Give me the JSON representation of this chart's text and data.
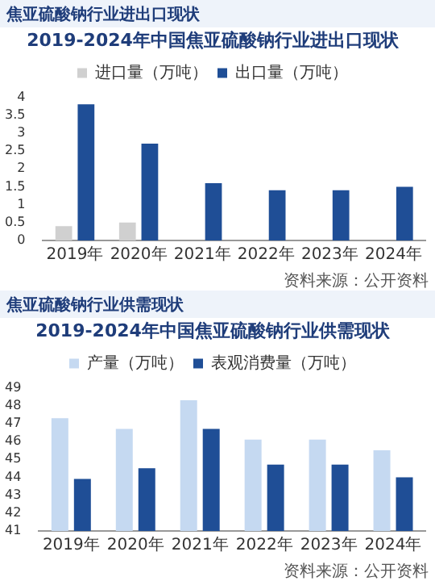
{
  "chart_data": [
    {
      "type": "bar",
      "title": "2019-2024年中国焦亚硫酸钠行业进出口现状",
      "categories": [
        "2019年",
        "2020年",
        "2021年",
        "2022年",
        "2023年",
        "2024年"
      ],
      "series": [
        {
          "name": "进口量（万吨）",
          "color": "#d0d0d0",
          "values": [
            0.4,
            0.5,
            null,
            null,
            null,
            null
          ]
        },
        {
          "name": "出口量（万吨）",
          "color": "#1f4e96",
          "values": [
            3.8,
            2.7,
            1.6,
            1.4,
            1.4,
            1.5
          ]
        }
      ],
      "ylim": [
        0,
        4
      ],
      "yticks": [
        0,
        0.5,
        1,
        1.5,
        2,
        2.5,
        3,
        3.5,
        4
      ],
      "grid": false,
      "legend": "top",
      "annotations": [
        "焦亚硫酸钠行业进出口现状",
        "资料来源：公开资料"
      ]
    },
    {
      "type": "bar",
      "title": "2019-2024年中国焦亚硫酸钠行业供需现状",
      "categories": [
        "2019年",
        "2020年",
        "2021年",
        "2022年",
        "2023年",
        "2024年"
      ],
      "series": [
        {
          "name": "产量（万吨）",
          "color": "#c5d9f1",
          "values": [
            47.3,
            46.7,
            48.3,
            46.1,
            46.1,
            45.5
          ]
        },
        {
          "name": "表观消费量（万吨）",
          "color": "#1f4e96",
          "values": [
            43.9,
            44.5,
            46.7,
            44.7,
            44.7,
            44.0
          ]
        }
      ],
      "ylim": [
        41,
        49
      ],
      "yticks": [
        41,
        42,
        43,
        44,
        45,
        46,
        47,
        48,
        49
      ],
      "grid": false,
      "legend": "top",
      "annotations": [
        "焦亚硫酸钠行业供需现状",
        "资料来源：公开资料"
      ]
    }
  ]
}
